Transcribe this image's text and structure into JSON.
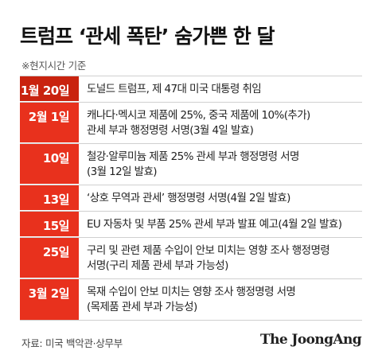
{
  "title": "트럼프 ‘관세 폭탄’ 숨가쁜 한 달",
  "note": "※현지시간 기준",
  "rows": [
    {
      "date": "1월 20일",
      "desc": "도널드 트럼프, 제 47대 미국 대통령 취임"
    },
    {
      "date": "2월 1일",
      "desc": "캐나다·멕시코 제품에 25%, 중국 제품에 10%(추가)\n관세 부과 행정명령 서명(3월 4일 발효)"
    },
    {
      "date": "10일",
      "desc": "철강·알루미늄 제품 25% 관세 부과 행정명령 서명\n(3월 12일 발효)"
    },
    {
      "date": "13일",
      "desc": "‘상호 무역과 관세’ 행정명령 서명(4월 2일 발효)"
    },
    {
      "date": "15일",
      "desc": "EU 자동차 및 부품 25% 관세 부과 발표 예고(4월 2일 발효)"
    },
    {
      "date": "25일",
      "desc": "구리 및 관련 제품 수입이 안보 미치는 영향 조사 행정명령\n서명(구리 제품 관세 부과 가능성)"
    },
    {
      "date": "3월 2일",
      "desc": "목재 수입이 안보 미치는 영향 조사 행정명령 서명\n(목제품 관세 부과 가능성)"
    }
  ],
  "source": "자료: 미국 백악관·상무부",
  "brand": "The JoongAng",
  "colors": {
    "accent": "#e8311d",
    "accent_dark": "#c9230f"
  }
}
